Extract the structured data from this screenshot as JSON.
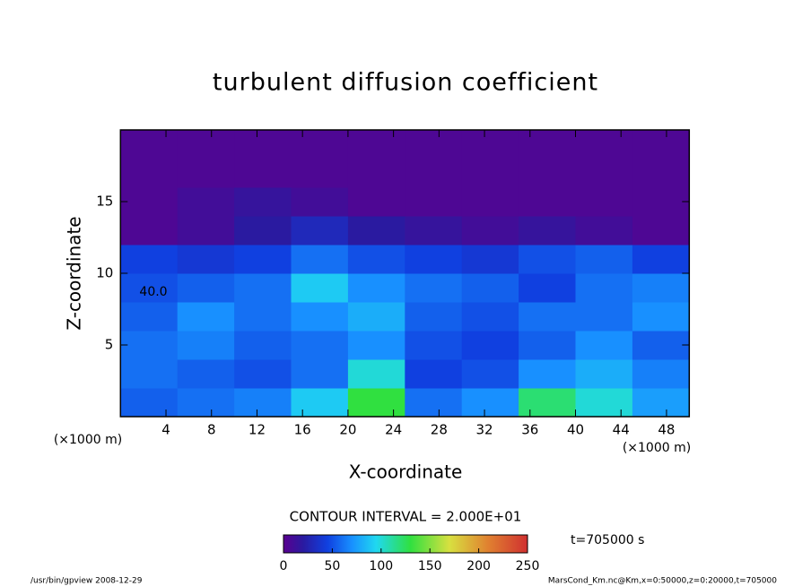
{
  "chart_data": {
    "type": "heatmap",
    "title": "turbulent diffusion coefficient",
    "x_label": "X-coordinate",
    "y_label": "Z-coordinate",
    "x_unit": "(×1000 m)",
    "y_unit": "(×1000 m)",
    "xlim": [
      0,
      50
    ],
    "ylim": [
      0,
      20
    ],
    "xticks": [
      4,
      8,
      12,
      16,
      20,
      24,
      28,
      32,
      36,
      40,
      44,
      48
    ],
    "yticks": [
      5,
      10,
      15
    ],
    "xbins": [
      0,
      5,
      10,
      15,
      20,
      25,
      30,
      35,
      40,
      45,
      50
    ],
    "zbins": [
      0,
      2,
      4,
      6,
      8,
      10,
      12,
      14,
      16,
      18,
      20
    ],
    "values": [
      [
        55,
        60,
        65,
        90,
        130,
        60,
        70,
        120,
        100,
        75
      ],
      [
        60,
        55,
        50,
        60,
        100,
        45,
        50,
        70,
        80,
        65
      ],
      [
        60,
        65,
        55,
        60,
        70,
        50,
        45,
        55,
        70,
        55
      ],
      [
        55,
        70,
        60,
        70,
        80,
        55,
        50,
        60,
        60,
        70
      ],
      [
        50,
        55,
        60,
        90,
        70,
        60,
        55,
        45,
        60,
        65
      ],
      [
        45,
        40,
        45,
        60,
        50,
        45,
        40,
        50,
        55,
        45
      ],
      [
        5,
        10,
        20,
        30,
        20,
        15,
        10,
        15,
        10,
        5
      ],
      [
        5,
        10,
        15,
        10,
        5,
        5,
        5,
        5,
        5,
        5
      ],
      [
        5,
        5,
        5,
        5,
        5,
        5,
        5,
        5,
        5,
        5
      ],
      [
        5,
        5,
        5,
        5,
        5,
        5,
        5,
        5,
        5,
        5
      ]
    ],
    "contour_label": "40.0",
    "contour_interval": "CONTOUR INTERVAL = 2.000E+01",
    "colorbar": {
      "lim": [
        0,
        250
      ],
      "ticks": [
        0,
        50,
        100,
        150,
        200,
        250
      ]
    },
    "time_label": "t=705000 s",
    "footer_left": "/usr/bin/gpview  2008-12-29",
    "footer_right": "MarsCond_Km.nc@Km,x=0:50000,z=0:20000,t=705000"
  }
}
